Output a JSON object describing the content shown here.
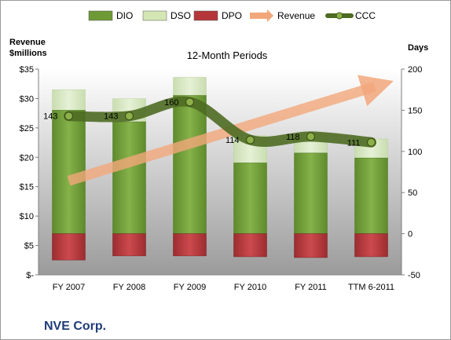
{
  "chart_data": {
    "type": "bar",
    "subtitle": "12-Month Periods",
    "company": "NVE Corp.",
    "left_axis_title": [
      "Revenue",
      "$millions"
    ],
    "right_axis_title": "Days",
    "left_ticks": [
      "$-",
      "$5",
      "$10",
      "$15",
      "$20",
      "$25",
      "$30",
      "$35"
    ],
    "right_ticks": [
      "-50",
      "0",
      "50",
      "100",
      "150",
      "200"
    ],
    "left_ylim": [
      0,
      35
    ],
    "right_ylim": [
      -50,
      200
    ],
    "categories": [
      "FY 2007",
      "FY 2008",
      "FY 2009",
      "FY 2010",
      "FY 2011",
      "TTM 6-2011"
    ],
    "legend": [
      "DIO",
      "DSO",
      "DPO",
      "Revenue",
      "CCC"
    ],
    "legend_position": "top",
    "grid": false,
    "series": [
      {
        "name": "DIO",
        "kind": "stacked-bar",
        "axis": "right",
        "values": [
          150,
          136,
          168,
          86,
          98,
          92
        ],
        "color": "#6e9a36"
      },
      {
        "name": "DSO",
        "kind": "stacked-bar",
        "axis": "right",
        "values": [
          25,
          28,
          22,
          33,
          22,
          23
        ],
        "color": "#d4e6b4"
      },
      {
        "name": "DPO",
        "kind": "negative-bar",
        "axis": "right",
        "values": [
          -32,
          -27,
          -27,
          -28,
          -29,
          -28
        ],
        "color": "#b5363a"
      },
      {
        "name": "Revenue",
        "kind": "trend-arrow",
        "axis": "left",
        "values": [
          16,
          18.5,
          21,
          23.5,
          26,
          32
        ],
        "color": "#f2a77b"
      },
      {
        "name": "CCC",
        "kind": "line",
        "axis": "right",
        "values": [
          143,
          143,
          160,
          114,
          118,
          111
        ],
        "color": "#5b7a2b"
      }
    ],
    "ccc_labels": [
      "143",
      "143",
      "160",
      "114",
      "118",
      "111"
    ]
  }
}
